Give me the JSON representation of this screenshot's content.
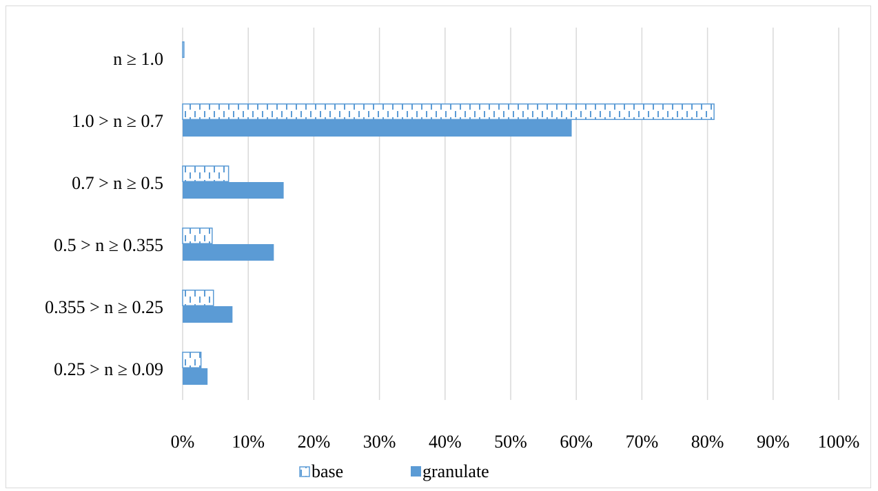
{
  "chart_data": {
    "type": "bar",
    "orientation": "horizontal",
    "categories": [
      "n ≥ 1.0",
      "1.0 > n ≥ 0.7",
      "0.7 > n ≥ 0.5",
      "0.5 > n ≥ 0.355",
      "0.355 > n ≥ 0.25",
      "0.25 > n ≥ 0.09"
    ],
    "series": [
      {
        "name": "base",
        "values": [
          0.2,
          81.0,
          7.0,
          4.5,
          4.7,
          2.8
        ],
        "fill": "pattern",
        "color": "#5b9bd5"
      },
      {
        "name": "granulate",
        "values": [
          0.0,
          59.3,
          15.4,
          13.9,
          7.6,
          3.8
        ],
        "fill": "solid",
        "color": "#5b9bd5"
      }
    ],
    "x_ticks": [
      "0%",
      "10%",
      "20%",
      "30%",
      "40%",
      "50%",
      "60%",
      "70%",
      "80%",
      "90%",
      "100%"
    ],
    "xlim": [
      0,
      100
    ],
    "grid": true,
    "legend_position": "bottom",
    "title": "",
    "xlabel": "",
    "ylabel": ""
  }
}
